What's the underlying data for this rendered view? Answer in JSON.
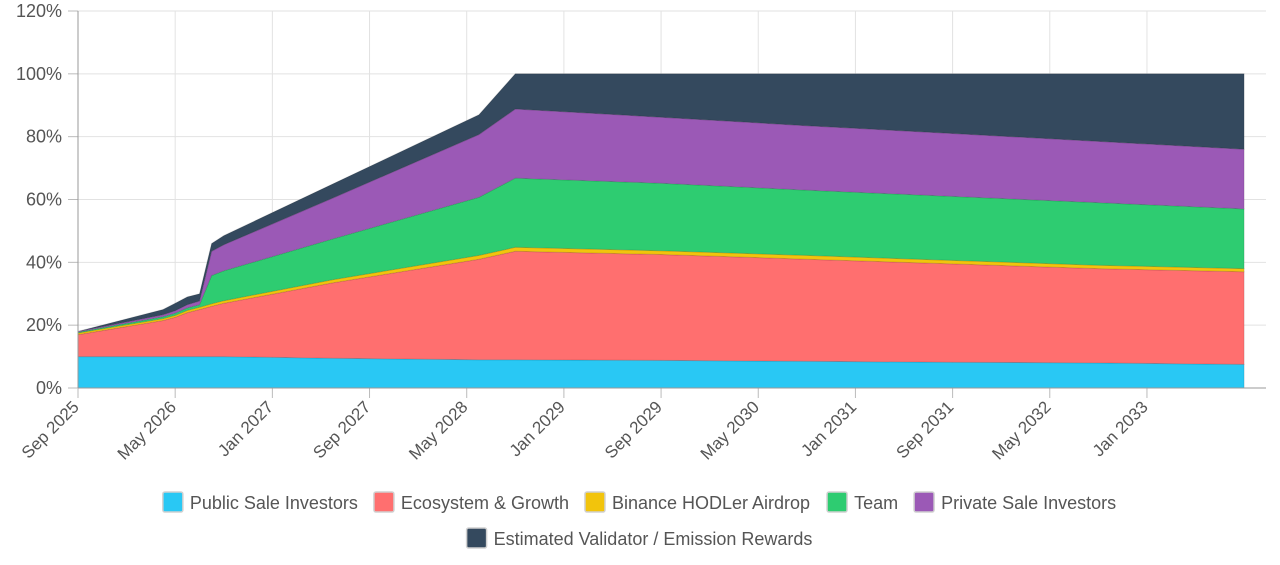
{
  "chart_data": {
    "type": "area",
    "stacked": true,
    "x_ticks": [
      "Sep 2025",
      "May 2026",
      "Jan 2027",
      "Sep 2027",
      "May 2028",
      "Jan 2029",
      "Sep 2029",
      "May 2030",
      "Jan 2031",
      "Sep 2031",
      "May 2032",
      "Jan 2033"
    ],
    "y_ticks": [
      "0%",
      "20%",
      "40%",
      "60%",
      "80%",
      "100%",
      "120%"
    ],
    "ylim": [
      0,
      120
    ],
    "x": [
      "2025-09",
      "2026-04",
      "2026-05",
      "2026-06",
      "2026-07",
      "2026-08",
      "2026-09",
      "2027-06",
      "2028-06",
      "2028-09",
      "2029-09",
      "2030-09",
      "2031-09",
      "2032-09",
      "2033-09"
    ],
    "series": [
      {
        "name": "Public Sale Investors",
        "color": "#29c8f4",
        "values": [
          10,
          10,
          10,
          10,
          10,
          10,
          10,
          9.5,
          9,
          9,
          8.8,
          8.5,
          8.2,
          8,
          7.5
        ]
      },
      {
        "name": "Ecosystem & Growth",
        "color": "#ff6f6f",
        "values": [
          7,
          11.5,
          12.5,
          14,
          15,
          16,
          17,
          24,
          32,
          34.5,
          33.7,
          32.5,
          31.3,
          30,
          29.5
        ]
      },
      {
        "name": "Binance HODLer Airdrop",
        "color": "#f2c40c",
        "values": [
          0.5,
          0.6,
          0.6,
          0.7,
          0.7,
          0.8,
          0.8,
          1,
          1.2,
          1.3,
          1.2,
          1.2,
          1.1,
          1.1,
          1
        ]
      },
      {
        "name": "Team",
        "color": "#2ecc71",
        "values": [
          0.3,
          0.6,
          0.7,
          0.8,
          0.8,
          9,
          9.5,
          13,
          18.5,
          22,
          21.5,
          20.8,
          20.4,
          19.9,
          19
        ]
      },
      {
        "name": "Private Sale Investors",
        "color": "#9b59b6",
        "values": [
          0.2,
          0.6,
          0.8,
          1,
          1.2,
          7.7,
          8.3,
          13,
          20,
          22,
          21,
          20.5,
          20,
          19.5,
          19
        ]
      },
      {
        "name": "Estimated Validator / Emission Rewards",
        "color": "#34495e",
        "values": [
          0,
          1.7,
          2.4,
          2.5,
          2.3,
          2.5,
          2.9,
          4.5,
          6.3,
          11.2,
          13.8,
          16.5,
          19,
          21.5,
          24
        ]
      }
    ],
    "legend_position": "bottom",
    "grid": true
  }
}
